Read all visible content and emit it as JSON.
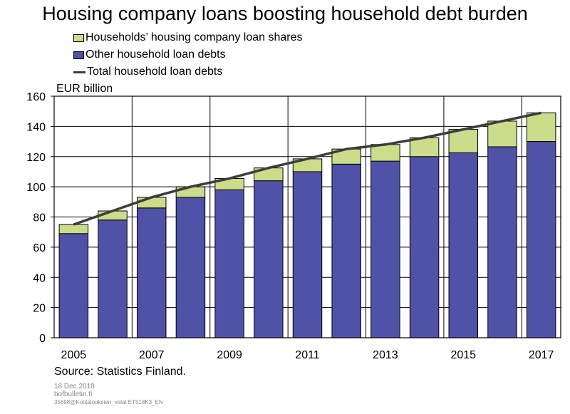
{
  "title": "Housing company loans boosting household debt burden",
  "legend": {
    "shares": "Households’ housing company loan shares",
    "other": "Other household loan debts",
    "total": "Total household loan debts"
  },
  "colors": {
    "shares": "#cbdc8a",
    "other": "#4f52a6",
    "total": "#3c3c3c",
    "grid": "#000000"
  },
  "source": "Source: Statistics Finland.",
  "footer": {
    "date": "18 Dec 2018",
    "site": "bofbulletin.fi",
    "code": "35698@Kotitalouksien_velat ET518K3_EN"
  },
  "chart_data": {
    "type": "bar",
    "stacked": true,
    "title": "Housing company loans boosting household debt burden",
    "ylabel": "EUR billion",
    "xlabel": "",
    "ylim": [
      0,
      160
    ],
    "yticks": [
      0,
      20,
      40,
      60,
      80,
      100,
      120,
      140,
      160
    ],
    "categories": [
      "2005",
      "2006",
      "2007",
      "2008",
      "2009",
      "2010",
      "2011",
      "2012",
      "2013",
      "2014",
      "2015",
      "2016",
      "2017"
    ],
    "xtick_labels": [
      "2005",
      "2007",
      "2009",
      "2011",
      "2013",
      "2015",
      "2017"
    ],
    "series": [
      {
        "name": "Other household loan debts",
        "values": [
          69,
          78,
          86,
          93,
          98,
          104,
          110,
          115,
          117,
          120,
          122.5,
          126.5,
          130
        ]
      },
      {
        "name": "Households’ housing company loan shares",
        "values": [
          6,
          6,
          7,
          7,
          7.5,
          8.5,
          8.5,
          10,
          11,
          12.5,
          15.5,
          17,
          19
        ]
      }
    ],
    "line": {
      "name": "Total household loan debts",
      "values": [
        75,
        84,
        93,
        100,
        105.5,
        112.5,
        118.5,
        125,
        128,
        132.5,
        138,
        143.5,
        149
      ]
    },
    "grid": true,
    "legend_position": "top-left"
  }
}
